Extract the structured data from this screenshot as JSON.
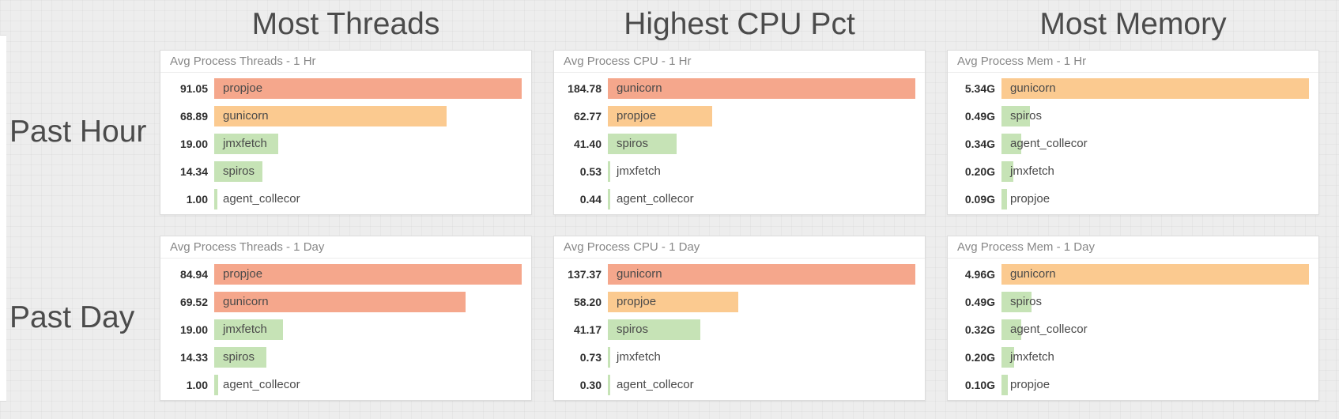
{
  "columns": [
    "Most Threads",
    "Highest CPU Pct",
    "Most Memory"
  ],
  "rows": [
    "Past Hour",
    "Past Day"
  ],
  "palette": {
    "red": "#f5a78c",
    "orange": "#fbca90",
    "green": "#c6e3b6"
  },
  "chart_data": [
    {
      "type": "bar",
      "orientation": "horizontal",
      "row": "Past Hour",
      "column": "Most Threads",
      "title": "Avg Process Threads - 1 Hr",
      "categories": [
        "propjoe",
        "gunicorn",
        "jmxfetch",
        "spiros",
        "agent_collecor"
      ],
      "values": [
        91.05,
        68.89,
        19.0,
        14.34,
        1.0
      ],
      "value_labels": [
        "91.05",
        "68.89",
        "19.00",
        "14.34",
        "1.00"
      ],
      "colors": [
        "red",
        "orange",
        "green",
        "green",
        "green"
      ],
      "xlim": [
        0,
        91.05
      ],
      "value_position": "left",
      "label_position": "inside-left",
      "grid": false,
      "legend": "none"
    },
    {
      "type": "bar",
      "orientation": "horizontal",
      "row": "Past Hour",
      "column": "Highest CPU Pct",
      "title": "Avg Process CPU - 1 Hr",
      "categories": [
        "gunicorn",
        "propjoe",
        "spiros",
        "jmxfetch",
        "agent_collecor"
      ],
      "values": [
        184.78,
        62.77,
        41.4,
        0.53,
        0.44
      ],
      "value_labels": [
        "184.78",
        "62.77",
        "41.40",
        "0.53",
        "0.44"
      ],
      "colors": [
        "red",
        "orange",
        "green",
        "green",
        "green"
      ],
      "xlim": [
        0,
        184.78
      ],
      "value_position": "left",
      "label_position": "inside-left",
      "grid": false,
      "legend": "none"
    },
    {
      "type": "bar",
      "orientation": "horizontal",
      "row": "Past Hour",
      "column": "Most Memory",
      "title": "Avg Process Mem - 1 Hr",
      "categories": [
        "gunicorn",
        "spiros",
        "agent_collecor",
        "jmxfetch",
        "propjoe"
      ],
      "values": [
        5.34,
        0.49,
        0.34,
        0.2,
        0.09
      ],
      "value_labels": [
        "5.34G",
        "0.49G",
        "0.34G",
        "0.20G",
        "0.09G"
      ],
      "unit": "G",
      "colors": [
        "orange",
        "green",
        "green",
        "green",
        "green"
      ],
      "xlim": [
        0,
        5.34
      ],
      "value_position": "left",
      "label_position": "inside-left",
      "grid": false,
      "legend": "none"
    },
    {
      "type": "bar",
      "orientation": "horizontal",
      "row": "Past Day",
      "column": "Most Threads",
      "title": "Avg Process Threads - 1 Day",
      "categories": [
        "propjoe",
        "gunicorn",
        "jmxfetch",
        "spiros",
        "agent_collecor"
      ],
      "values": [
        84.94,
        69.52,
        19.0,
        14.33,
        1.0
      ],
      "value_labels": [
        "84.94",
        "69.52",
        "19.00",
        "14.33",
        "1.00"
      ],
      "colors": [
        "red",
        "red",
        "green",
        "green",
        "green"
      ],
      "xlim": [
        0,
        84.94
      ],
      "value_position": "left",
      "label_position": "inside-left",
      "grid": false,
      "legend": "none"
    },
    {
      "type": "bar",
      "orientation": "horizontal",
      "row": "Past Day",
      "column": "Highest CPU Pct",
      "title": "Avg Process CPU - 1 Day",
      "categories": [
        "gunicorn",
        "propjoe",
        "spiros",
        "jmxfetch",
        "agent_collecor"
      ],
      "values": [
        137.37,
        58.2,
        41.17,
        0.73,
        0.3
      ],
      "value_labels": [
        "137.37",
        "58.20",
        "41.17",
        "0.73",
        "0.30"
      ],
      "colors": [
        "red",
        "orange",
        "green",
        "green",
        "green"
      ],
      "xlim": [
        0,
        137.37
      ],
      "value_position": "left",
      "label_position": "inside-left",
      "grid": false,
      "legend": "none"
    },
    {
      "type": "bar",
      "orientation": "horizontal",
      "row": "Past Day",
      "column": "Most Memory",
      "title": "Avg Process Mem - 1 Day",
      "categories": [
        "gunicorn",
        "spiros",
        "agent_collecor",
        "jmxfetch",
        "propjoe"
      ],
      "values": [
        4.96,
        0.49,
        0.32,
        0.2,
        0.1
      ],
      "value_labels": [
        "4.96G",
        "0.49G",
        "0.32G",
        "0.20G",
        "0.10G"
      ],
      "unit": "G",
      "colors": [
        "orange",
        "green",
        "green",
        "green",
        "green"
      ],
      "xlim": [
        0,
        4.96
      ],
      "value_position": "left",
      "label_position": "inside-left",
      "grid": false,
      "legend": "none"
    }
  ]
}
